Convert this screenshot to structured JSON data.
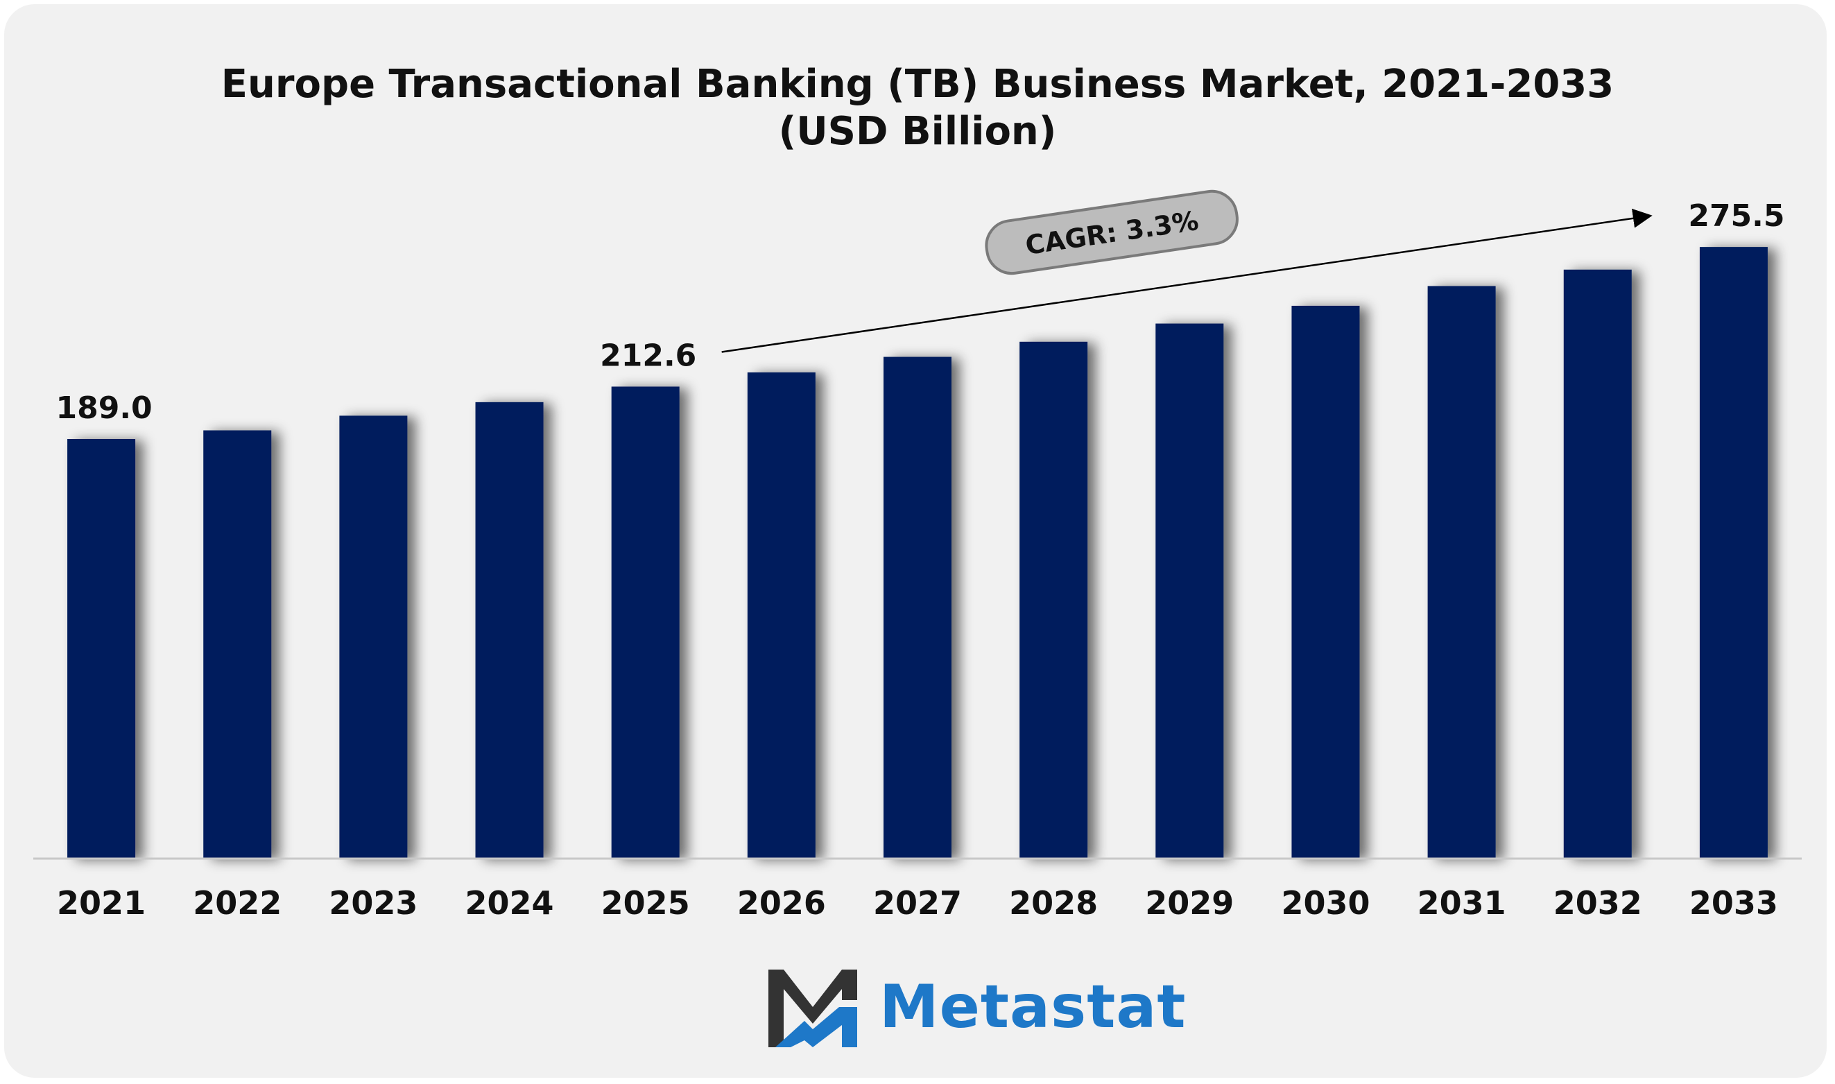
{
  "chart_data": {
    "type": "bar",
    "title": "Europe Transactional Banking (TB) Business Market, 2021-2033",
    "subtitle": "(USD Billion)",
    "categories": [
      "2021",
      "2022",
      "2023",
      "2024",
      "2025",
      "2026",
      "2027",
      "2028",
      "2029",
      "2030",
      "2031",
      "2032",
      "2033"
    ],
    "values": [
      189.0,
      192.9,
      199.5,
      205.6,
      212.6,
      219.0,
      226.0,
      232.8,
      241.0,
      249.0,
      257.9,
      265.3,
      275.5
    ],
    "data_labels": {
      "2021": "189.0",
      "2025": "212.6",
      "2033": "275.5"
    },
    "xlabel": "",
    "ylabel": "",
    "ylim": [
      0,
      280
    ],
    "grid": false,
    "bar_color": "#041e5d",
    "annotation": {
      "label": "CAGR: 3.3%",
      "from_category": "2025",
      "to_category": "2033"
    }
  },
  "logo": {
    "name": "Metastat",
    "icon": "metastat-m-icon",
    "color": "#1e78c8",
    "dark_color": "#333333"
  }
}
